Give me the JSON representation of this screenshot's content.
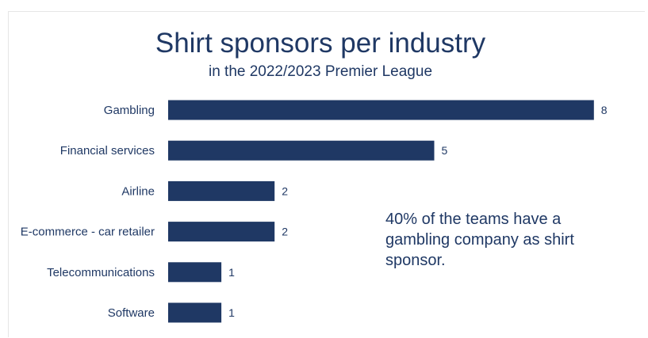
{
  "chart_data": {
    "type": "bar",
    "orientation": "horizontal",
    "title": "Shirt sponsors per industry",
    "subtitle": "in the 2022/2023 Premier League",
    "categories": [
      "Gambling",
      "Financial services",
      "Airline",
      "E-commerce - car retailer",
      "Telecommunications",
      "Software"
    ],
    "values": [
      8,
      5,
      2,
      2,
      1,
      1
    ],
    "xlim": [
      0,
      8
    ],
    "grid": false,
    "legend": "none",
    "bar_color": "#1f3864",
    "data_labels": true,
    "annotation": "40% of the teams have a gambling company as shirt sponsor."
  }
}
